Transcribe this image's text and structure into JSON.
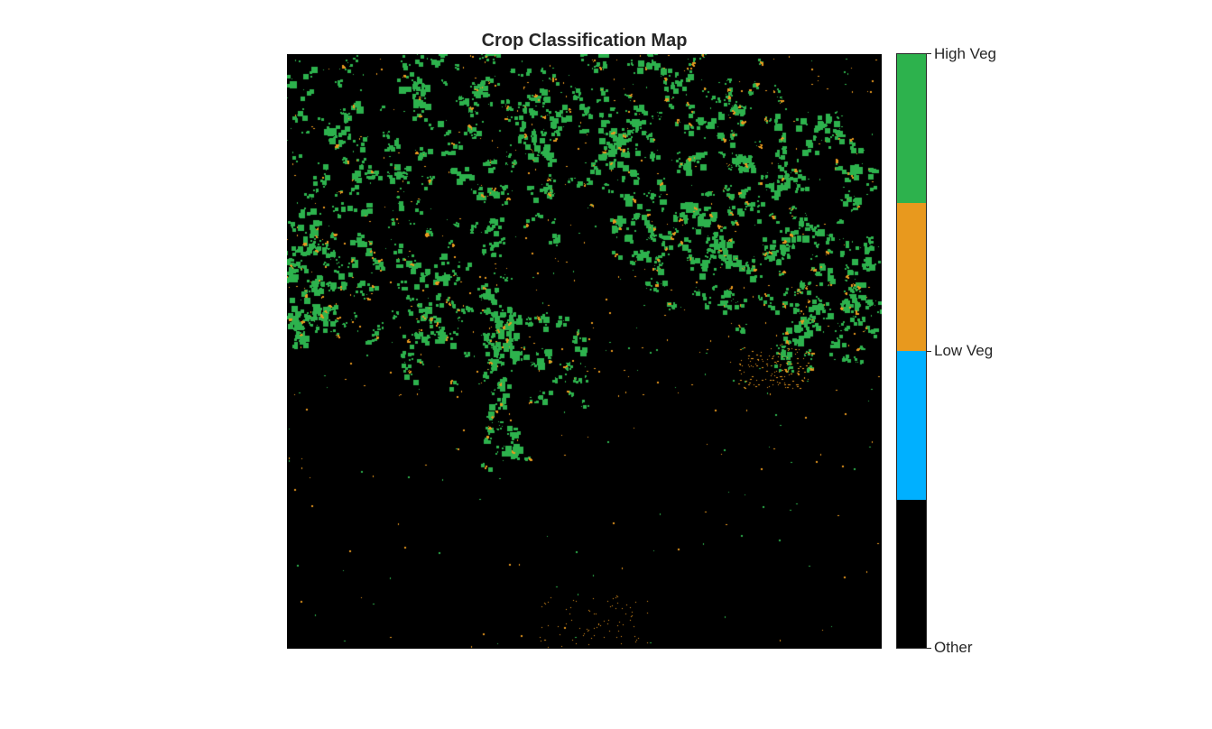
{
  "chart_data": {
    "type": "heatmap",
    "title": "Crop Classification Map",
    "xlabel": "",
    "ylabel": "",
    "colorbar": {
      "classes": [
        {
          "name": "Other",
          "color": "#000000"
        },
        {
          "name": "Low Veg",
          "color": "#00b0ff"
        },
        {
          "name": "Low Veg",
          "color": "#e8991e"
        },
        {
          "name": "High Veg",
          "color": "#2db24d"
        }
      ],
      "tick_labels": [
        "High Veg",
        "Low Veg",
        "Other"
      ]
    },
    "colors": {
      "background": "#000000",
      "high_veg": "#2db24d",
      "low_veg_orange": "#e8991e",
      "low_veg_blue": "#00b0ff",
      "text": "#262626"
    }
  }
}
